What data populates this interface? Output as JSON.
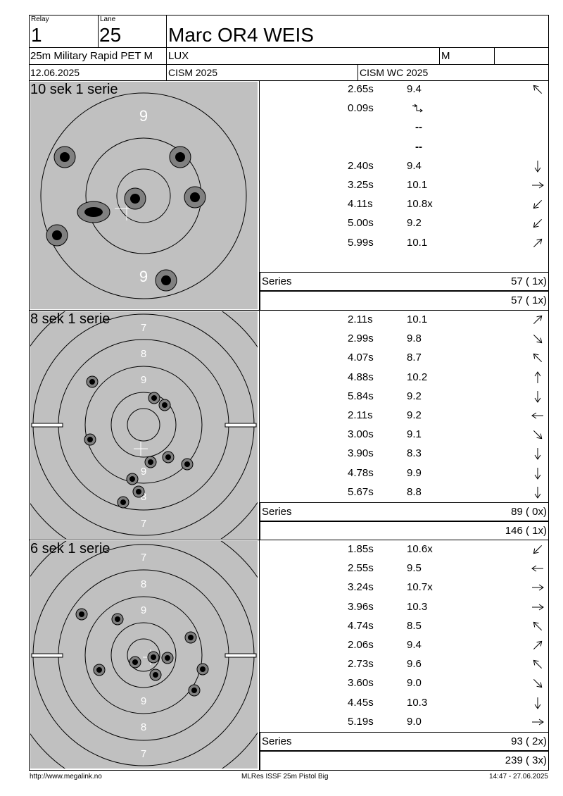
{
  "header": {
    "relay_label": "Relay",
    "relay": "1",
    "lane_label": "Lane",
    "lane": "25",
    "name": "Marc OR4 WEIS",
    "event": "25m Military Rapid PET M",
    "nation": "LUX",
    "gender": "M",
    "date": "12.06.2025",
    "competition": "CISM 2025",
    "match": "CISM WC 2025"
  },
  "sections": [
    {
      "title": "10 sek 1 serie",
      "ring_labels": [
        "9",
        "9"
      ],
      "shots": [
        {
          "time": "2.65s",
          "score": "9.4",
          "dir": "↖"
        },
        {
          "time": "0.09s",
          "score": "",
          "dir": ""
        },
        {
          "time": "",
          "score": "--",
          "dir": ""
        },
        {
          "time": "",
          "score": "--",
          "dir": ""
        },
        {
          "time": "2.40s",
          "score": "9.4",
          "dir": "↓"
        },
        {
          "time": "3.25s",
          "score": "10.1",
          "dir": "→"
        },
        {
          "time": "4.11s",
          "score": "10.8x",
          "dir": "↙"
        },
        {
          "time": "5.00s",
          "score": "9.2",
          "dir": "↙"
        },
        {
          "time": "5.99s",
          "score": "10.1",
          "dir": "↗"
        }
      ],
      "series_label": "Series",
      "series_total": "57 ( 1x)",
      "cumulative": "57 ( 1x)"
    },
    {
      "title": "8 sek 1 serie",
      "ring_labels": [
        "7",
        "8",
        "9",
        "9",
        "8",
        "7"
      ],
      "shots": [
        {
          "time": "2.11s",
          "score": "10.1",
          "dir": "↗"
        },
        {
          "time": "2.99s",
          "score": "9.8",
          "dir": "↘"
        },
        {
          "time": "4.07s",
          "score": "8.7",
          "dir": "↖"
        },
        {
          "time": "4.88s",
          "score": "10.2",
          "dir": "↑"
        },
        {
          "time": "5.84s",
          "score": "9.2",
          "dir": "↓"
        },
        {
          "time": "2.11s",
          "score": "9.2",
          "dir": "←"
        },
        {
          "time": "3.00s",
          "score": "9.1",
          "dir": "↘"
        },
        {
          "time": "3.90s",
          "score": "8.3",
          "dir": "↓"
        },
        {
          "time": "4.78s",
          "score": "9.9",
          "dir": "↓"
        },
        {
          "time": "5.67s",
          "score": "8.8",
          "dir": "↓"
        }
      ],
      "series_label": "Series",
      "series_total": "89 ( 0x)",
      "cumulative": "146 ( 1x)"
    },
    {
      "title": "6 sek 1 serie",
      "ring_labels": [
        "7",
        "8",
        "9",
        "9",
        "8",
        "7"
      ],
      "shots": [
        {
          "time": "1.85s",
          "score": "10.6x",
          "dir": "↙"
        },
        {
          "time": "2.55s",
          "score": "9.5",
          "dir": "←"
        },
        {
          "time": "3.24s",
          "score": "10.7x",
          "dir": "→"
        },
        {
          "time": "3.96s",
          "score": "10.3",
          "dir": "→"
        },
        {
          "time": "4.74s",
          "score": "8.5",
          "dir": "↖"
        },
        {
          "time": "2.06s",
          "score": "9.4",
          "dir": "↗"
        },
        {
          "time": "2.73s",
          "score": "9.6",
          "dir": "↖"
        },
        {
          "time": "3.60s",
          "score": "9.0",
          "dir": "↘"
        },
        {
          "time": "4.45s",
          "score": "10.3",
          "dir": "↓"
        },
        {
          "time": "5.19s",
          "score": "9.0",
          "dir": "→"
        }
      ],
      "series_label": "Series",
      "series_total": "93 ( 2x)",
      "cumulative": "239 ( 3x)"
    }
  ],
  "footer": {
    "url": "http://www.megalink.no",
    "software": "MLRes ISSF 25m Pistol Big",
    "timestamp": "14:47 - 27.06.2025"
  },
  "colors": {
    "target_bg": "#c0c0c0",
    "hole_ring": "#808080",
    "hole_center": "#000000"
  }
}
